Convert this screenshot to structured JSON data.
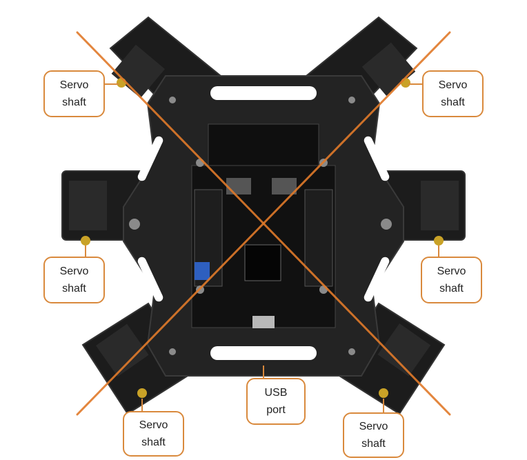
{
  "colors": {
    "accent": "#e07a2a",
    "callout_border": "#d9893c",
    "frame": "#222222",
    "board": "#111111"
  },
  "callouts": [
    {
      "line1": "Servo",
      "line2": "shaft"
    },
    {
      "line1": "Servo",
      "line2": "shaft"
    },
    {
      "line1": "Servo",
      "line2": "shaft"
    },
    {
      "line1": "Servo",
      "line2": "shaft"
    },
    {
      "line1": "Servo",
      "line2": "shaft"
    },
    {
      "line1": "USB",
      "line2": "port"
    },
    {
      "line1": "Servo",
      "line2": "shaft"
    }
  ]
}
